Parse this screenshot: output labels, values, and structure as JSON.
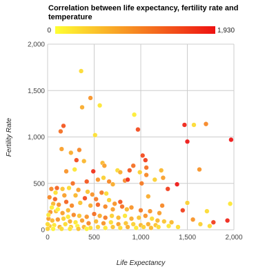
{
  "chart_data": {
    "type": "scatter",
    "title": "Correlation between life expectancy, fertility rate and temperature",
    "title_lines": [
      "Correlation between life expectancy, fertility rate and",
      "temperature"
    ],
    "xlabel": "Life Expectancy",
    "ylabel": "Fertility Rate",
    "xlim": [
      0,
      2000
    ],
    "ylim": [
      0,
      2000
    ],
    "x_ticks": [
      "0",
      "500",
      "1,000",
      "1,500",
      "2,000"
    ],
    "y_ticks": [
      "0",
      "500",
      "1,000",
      "1,500",
      "2,000"
    ],
    "grid": true,
    "colorbar": {
      "min": 0,
      "max": 1930,
      "min_label": "0",
      "max_label": "1,930",
      "color_low": "#ffff33",
      "color_high": "#ee1111"
    },
    "points": [
      [
        360,
        1710,
        300
      ],
      [
        560,
        1340,
        200
      ],
      [
        370,
        1320,
        700
      ],
      [
        460,
        1420,
        900
      ],
      [
        930,
        1240,
        150
      ],
      [
        170,
        1120,
        1400
      ],
      [
        140,
        1060,
        1200
      ],
      [
        970,
        1080,
        1500
      ],
      [
        510,
        1020,
        250
      ],
      [
        1470,
        1130,
        1800
      ],
      [
        1570,
        1130,
        300
      ],
      [
        1700,
        1140,
        1000
      ],
      [
        1500,
        950,
        1900
      ],
      [
        1970,
        970,
        1930
      ],
      [
        150,
        870,
        800
      ],
      [
        250,
        830,
        700
      ],
      [
        310,
        750,
        1500
      ],
      [
        340,
        860,
        1000
      ],
      [
        390,
        740,
        600
      ],
      [
        200,
        630,
        900
      ],
      [
        290,
        650,
        200
      ],
      [
        590,
        720,
        600
      ],
      [
        610,
        690,
        800
      ],
      [
        490,
        630,
        1700
      ],
      [
        880,
        640,
        1400
      ],
      [
        920,
        690,
        1200
      ],
      [
        1020,
        800,
        1500
      ],
      [
        1050,
        750,
        1600
      ],
      [
        1060,
        670,
        1200
      ],
      [
        1220,
        640,
        600
      ],
      [
        1240,
        560,
        800
      ],
      [
        1150,
        540,
        400
      ],
      [
        1630,
        650,
        900
      ],
      [
        990,
        620,
        400
      ],
      [
        750,
        640,
        300
      ],
      [
        780,
        620,
        700
      ],
      [
        830,
        530,
        1000
      ],
      [
        860,
        540,
        1700
      ],
      [
        1010,
        500,
        1100
      ],
      [
        1060,
        590,
        1000
      ],
      [
        100,
        450,
        1300
      ],
      [
        40,
        440,
        1000
      ],
      [
        160,
        440,
        500
      ],
      [
        230,
        450,
        300
      ],
      [
        270,
        500,
        1200
      ],
      [
        420,
        520,
        1400
      ],
      [
        540,
        540,
        900
      ],
      [
        600,
        560,
        400
      ],
      [
        660,
        520,
        1000
      ],
      [
        700,
        490,
        700
      ],
      [
        330,
        430,
        800
      ],
      [
        430,
        410,
        500
      ],
      [
        480,
        380,
        900
      ],
      [
        580,
        400,
        1100
      ],
      [
        630,
        390,
        300
      ],
      [
        1290,
        440,
        1600
      ],
      [
        1390,
        490,
        1900
      ],
      [
        20,
        350,
        1000
      ],
      [
        80,
        330,
        1300
      ],
      [
        180,
        370,
        800
      ],
      [
        300,
        370,
        600
      ],
      [
        400,
        340,
        1500
      ],
      [
        520,
        330,
        1100
      ],
      [
        660,
        320,
        400
      ],
      [
        720,
        280,
        900
      ],
      [
        780,
        300,
        1400
      ],
      [
        1080,
        360,
        700
      ],
      [
        1500,
        290,
        400
      ],
      [
        1960,
        280,
        200
      ],
      [
        1230,
        260,
        1000
      ],
      [
        60,
        280,
        600
      ],
      [
        120,
        270,
        900
      ],
      [
        200,
        300,
        1300
      ],
      [
        260,
        260,
        1000
      ],
      [
        350,
        290,
        500
      ],
      [
        460,
        260,
        700
      ],
      [
        540,
        270,
        1300
      ],
      [
        620,
        250,
        1000
      ],
      [
        700,
        220,
        800
      ],
      [
        800,
        250,
        1200
      ],
      [
        850,
        220,
        600
      ],
      [
        900,
        240,
        900
      ],
      [
        1000,
        210,
        1100
      ],
      [
        1100,
        200,
        900
      ],
      [
        1200,
        180,
        800
      ],
      [
        1450,
        210,
        1600
      ],
      [
        1710,
        200,
        300
      ],
      [
        1930,
        100,
        1800
      ],
      [
        1780,
        80,
        1600
      ],
      [
        1560,
        110,
        900
      ],
      [
        30,
        190,
        900
      ],
      [
        90,
        200,
        500
      ],
      [
        160,
        180,
        800
      ],
      [
        220,
        210,
        600
      ],
      [
        280,
        160,
        1000
      ],
      [
        340,
        150,
        500
      ],
      [
        420,
        140,
        900
      ],
      [
        500,
        170,
        1200
      ],
      [
        560,
        150,
        700
      ],
      [
        620,
        130,
        1100
      ],
      [
        690,
        150,
        400
      ],
      [
        760,
        130,
        600
      ],
      [
        830,
        150,
        200
      ],
      [
        900,
        120,
        700
      ],
      [
        980,
        130,
        500
      ],
      [
        1050,
        150,
        900
      ],
      [
        1120,
        120,
        300
      ],
      [
        1180,
        100,
        600
      ],
      [
        1250,
        90,
        500
      ],
      [
        1330,
        80,
        600
      ],
      [
        10,
        120,
        800
      ],
      [
        50,
        100,
        600
      ],
      [
        110,
        110,
        900
      ],
      [
        170,
        120,
        400
      ],
      [
        240,
        90,
        700
      ],
      [
        300,
        80,
        200
      ],
      [
        370,
        100,
        800
      ],
      [
        440,
        70,
        1000
      ],
      [
        520,
        90,
        600
      ],
      [
        600,
        70,
        900
      ],
      [
        680,
        80,
        300
      ],
      [
        760,
        60,
        800
      ],
      [
        840,
        70,
        500
      ],
      [
        920,
        60,
        400
      ],
      [
        1000,
        50,
        600
      ],
      [
        1080,
        60,
        700
      ],
      [
        1160,
        50,
        500
      ],
      [
        1300,
        40,
        200
      ],
      [
        1400,
        30,
        300
      ],
      [
        1640,
        60,
        400
      ],
      [
        1740,
        40,
        300
      ],
      [
        20,
        40,
        500
      ],
      [
        70,
        50,
        200
      ],
      [
        130,
        30,
        700
      ],
      [
        190,
        60,
        300
      ],
      [
        250,
        30,
        500
      ],
      [
        320,
        40,
        100
      ],
      [
        390,
        30,
        600
      ],
      [
        460,
        20,
        300
      ],
      [
        540,
        30,
        400
      ],
      [
        620,
        20,
        200
      ],
      [
        700,
        30,
        500
      ],
      [
        780,
        20,
        300
      ],
      [
        860,
        30,
        700
      ],
      [
        950,
        20,
        200
      ],
      [
        1030,
        30,
        400
      ],
      [
        1110,
        20,
        600
      ],
      [
        1190,
        30,
        300
      ],
      [
        0,
        10,
        400
      ],
      [
        60,
        10,
        100
      ],
      [
        150,
        10,
        300
      ],
      [
        240,
        10,
        200
      ],
      [
        330,
        10,
        500
      ],
      [
        420,
        10,
        100
      ],
      [
        0,
        60,
        300
      ],
      [
        10,
        160,
        200
      ],
      [
        110,
        220,
        100
      ],
      [
        220,
        140,
        200
      ],
      [
        45,
        240,
        150
      ],
      [
        85,
        400,
        250
      ]
    ]
  }
}
